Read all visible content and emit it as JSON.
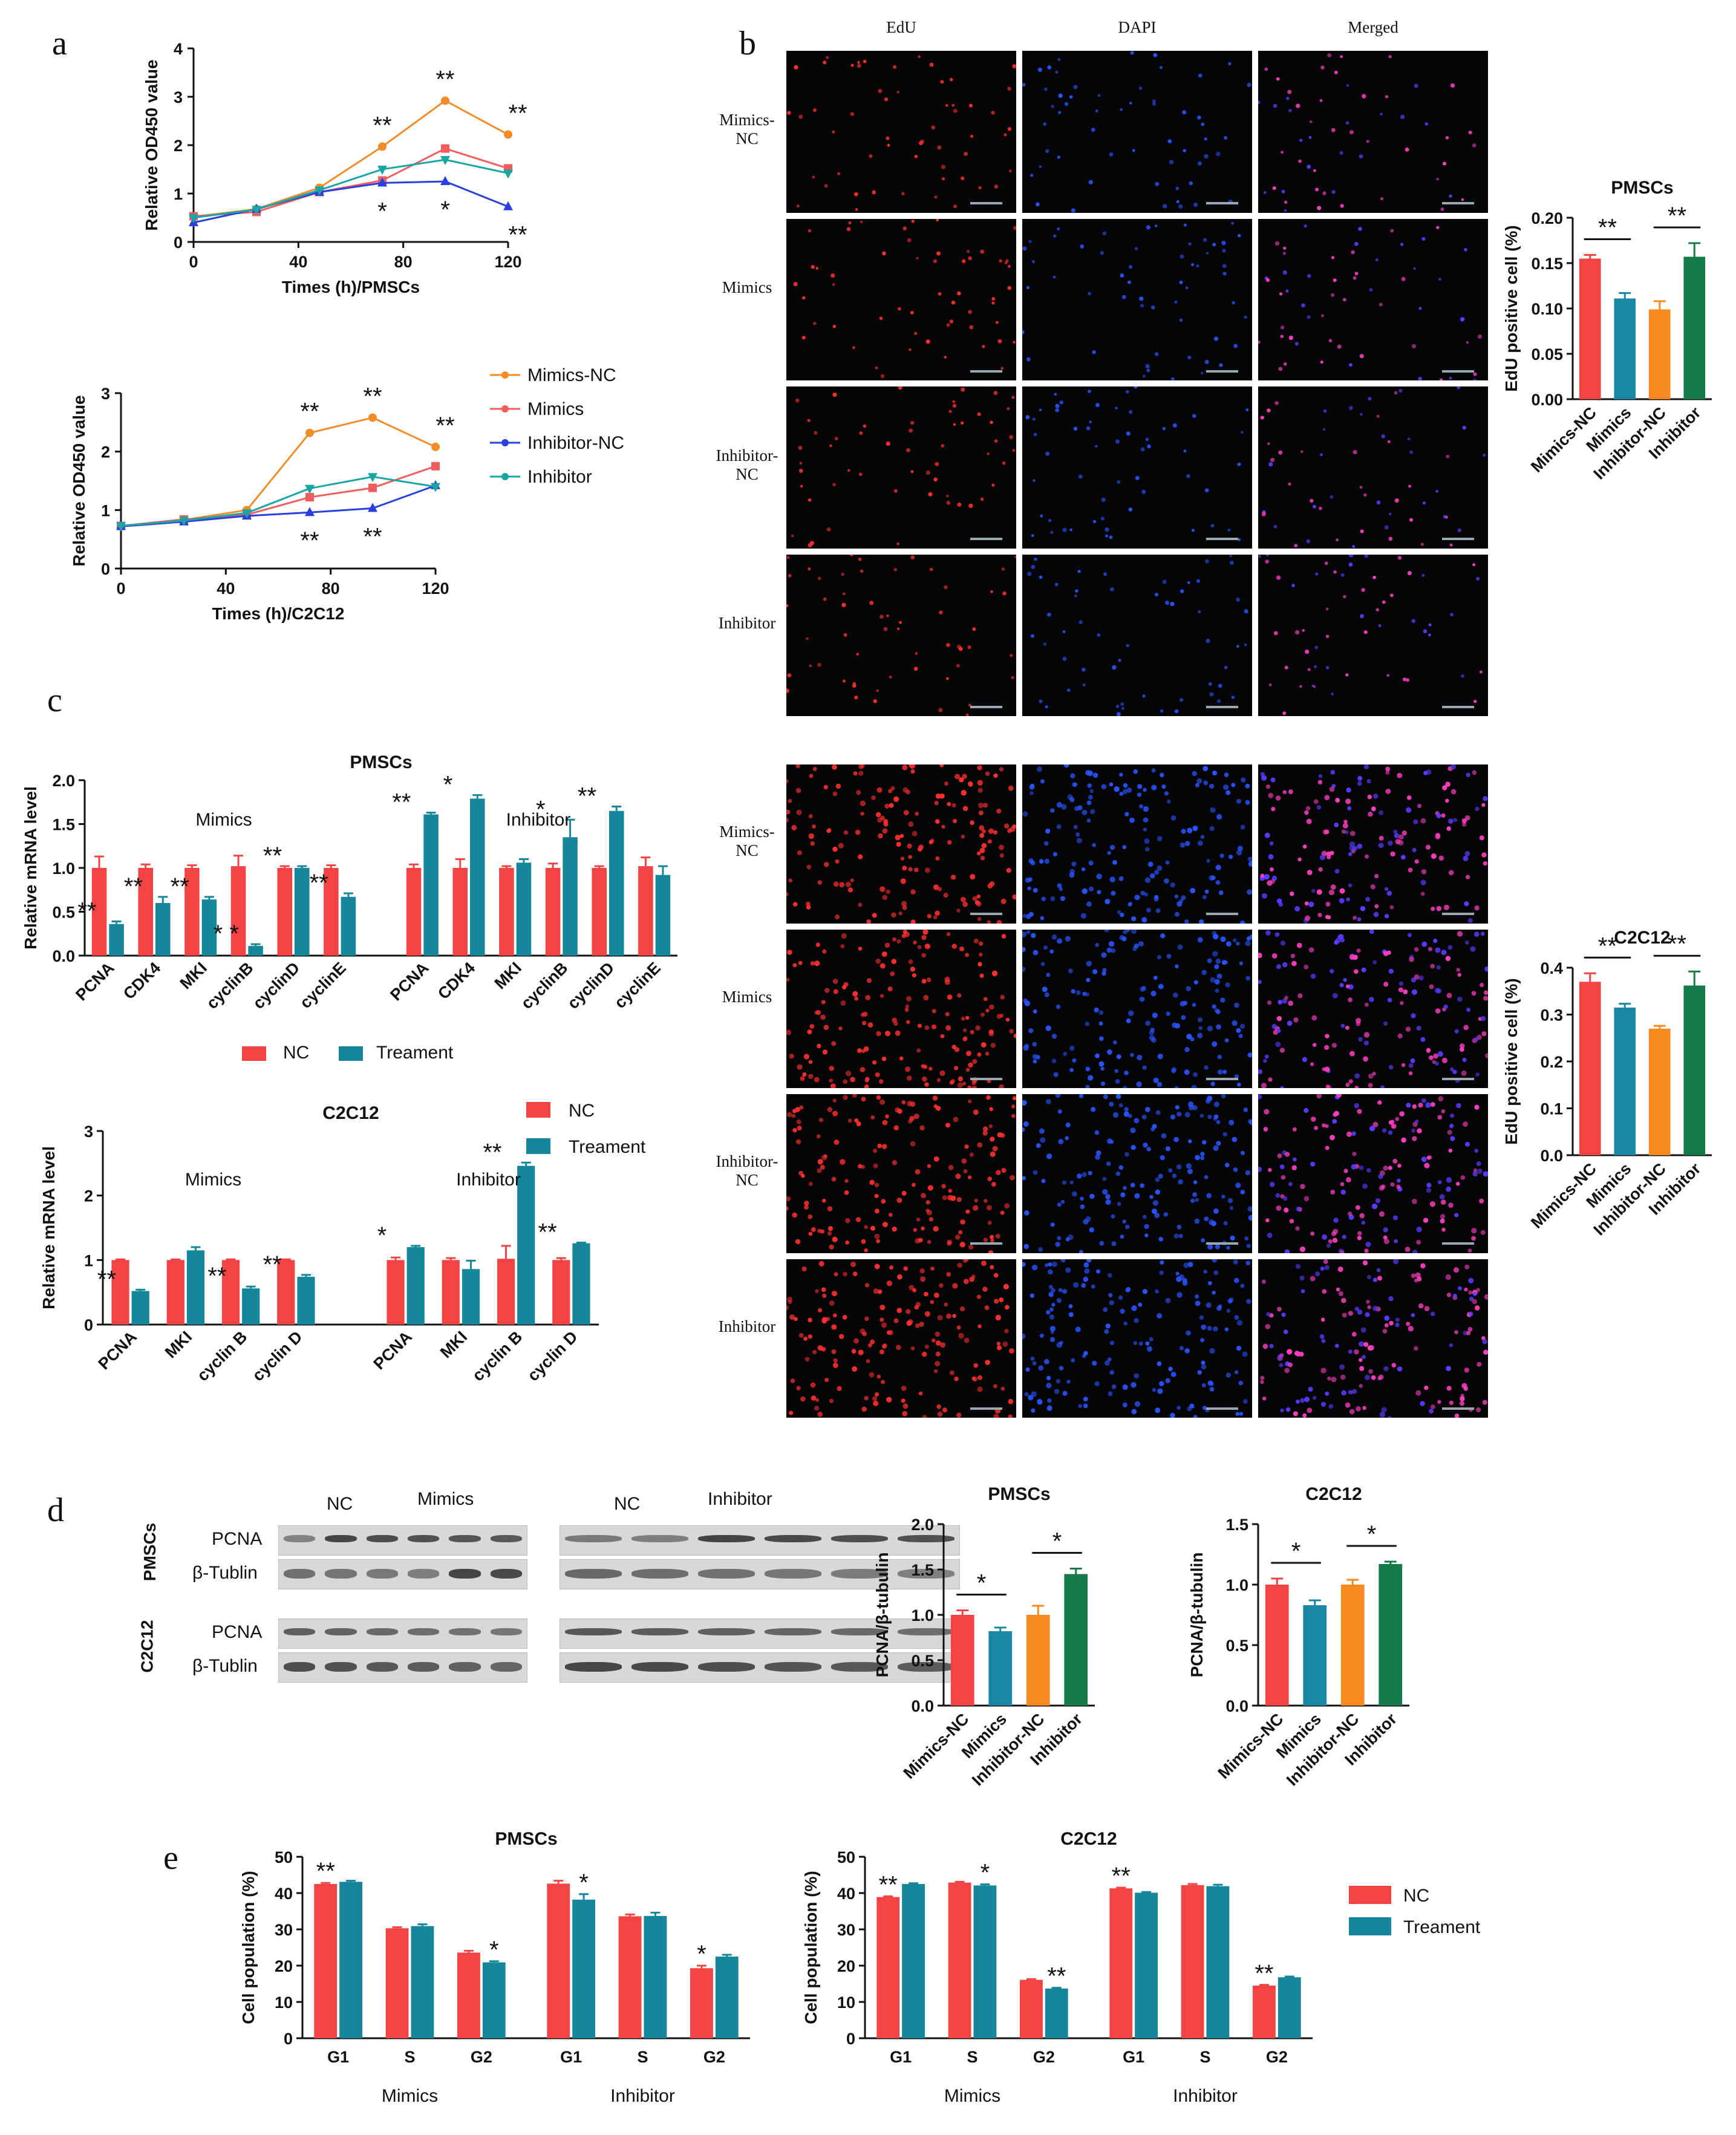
{
  "panels": {
    "a": {
      "label": "a"
    },
    "b": {
      "label": "b",
      "columns": [
        "EdU",
        "DAPI",
        "Merged"
      ],
      "rows_top": [
        "Mimics-\nNC",
        "Mimics",
        "Inhibitor-\nNC",
        "Inhibitor"
      ],
      "rows_bottom": [
        "Mimics-\nNC",
        "Mimics",
        "Inhibitor-\nNC",
        "Inhibitor"
      ]
    },
    "c": {
      "label": "c"
    },
    "d": {
      "label": "d",
      "blot_groups_left": [
        "NC",
        "Mimics"
      ],
      "blot_groups_right": [
        "NC",
        "Inhibitor"
      ],
      "cell_labels": [
        "PMSCs",
        "C2C12"
      ],
      "band_labels": [
        "PCNA",
        "β-Tublin"
      ]
    },
    "e": {
      "label": "e"
    }
  },
  "colors": {
    "mimics_nc": "#f28c28",
    "mimics": "#f25c5c",
    "inhibitor_nc": "#2a3fe0",
    "inhibitor": "#1aa5a5",
    "nc": "#f24444",
    "treament": "#16869a",
    "bar_mimics_nc": "#f24444",
    "bar_mimics": "#1a87a3",
    "bar_inhibitor_nc": "#f68a1e",
    "bar_inhibitor": "#157a4a"
  },
  "chart_data": [
    {
      "id": "a_pmsc",
      "type": "line",
      "xlabel": "Times (h)/PMSCs",
      "ylabel": "Relative OD450 value",
      "x": [
        0,
        24,
        48,
        72,
        96,
        120
      ],
      "xticks": [
        0,
        40,
        80,
        120
      ],
      "ylim": [
        0,
        4
      ],
      "yticks": [
        0,
        1,
        2,
        3,
        4
      ],
      "series": [
        {
          "name": "Mimics-NC",
          "values": [
            0.52,
            0.68,
            1.12,
            1.97,
            2.92,
            2.22
          ]
        },
        {
          "name": "Mimics",
          "values": [
            0.53,
            0.62,
            1.03,
            1.27,
            1.93,
            1.52
          ]
        },
        {
          "name": "Inhibitor-NC",
          "values": [
            0.4,
            0.68,
            1.03,
            1.22,
            1.25,
            0.73
          ]
        },
        {
          "name": "Inhibitor",
          "values": [
            0.5,
            0.67,
            1.07,
            1.5,
            1.7,
            1.42
          ]
        }
      ],
      "annotations_above": [
        {
          "x": 72,
          "text": "**"
        },
        {
          "x": 96,
          "text": "**"
        },
        {
          "x": 120,
          "text": "**"
        }
      ],
      "annotations_below": [
        {
          "x": 72,
          "text": "*"
        },
        {
          "x": 96,
          "text": "*"
        },
        {
          "x": 120,
          "text": "**"
        }
      ]
    },
    {
      "id": "a_c2c12",
      "type": "line",
      "xlabel": "Times (h)/C2C12",
      "ylabel": "Relative OD450 value",
      "x": [
        0,
        24,
        48,
        72,
        96,
        120
      ],
      "xticks": [
        0,
        40,
        80,
        120
      ],
      "ylim": [
        0,
        3
      ],
      "yticks": [
        0,
        1,
        2,
        3
      ],
      "series": [
        {
          "name": "Mimics-NC",
          "values": [
            0.72,
            0.83,
            1.0,
            2.32,
            2.58,
            2.08
          ]
        },
        {
          "name": "Mimics",
          "values": [
            0.73,
            0.84,
            0.92,
            1.22,
            1.38,
            1.75
          ]
        },
        {
          "name": "Inhibitor-NC",
          "values": [
            0.72,
            0.8,
            0.9,
            0.96,
            1.03,
            1.42
          ]
        },
        {
          "name": "Inhibitor",
          "values": [
            0.73,
            0.82,
            0.95,
            1.37,
            1.57,
            1.4
          ]
        }
      ],
      "annotations_above": [
        {
          "x": 72,
          "text": "**"
        },
        {
          "x": 96,
          "text": "**"
        },
        {
          "x": 120,
          "text": "**"
        }
      ],
      "annotations_below": [
        {
          "x": 72,
          "text": "**"
        },
        {
          "x": 96,
          "text": "**"
        }
      ]
    },
    {
      "id": "b_pmsc",
      "type": "bar",
      "title": "PMSCs",
      "ylabel": "EdU positive cell (%)",
      "categories": [
        "Mimics-NC",
        "Mimics",
        "Inhibitor-NC",
        "Inhibitor"
      ],
      "values": [
        0.155,
        0.111,
        0.099,
        0.157
      ],
      "errors": [
        0.004,
        0.006,
        0.009,
        0.015
      ],
      "ylim": [
        0,
        0.2
      ],
      "yticks": [
        0.0,
        0.05,
        0.1,
        0.15,
        0.2
      ],
      "ytick_labels": [
        "0.00",
        "0.05",
        "0.10",
        "0.15",
        "0.20"
      ],
      "brackets": [
        {
          "from": 0,
          "to": 1,
          "text": "**"
        },
        {
          "from": 2,
          "to": 3,
          "text": "**"
        }
      ]
    },
    {
      "id": "b_c2c12",
      "type": "bar",
      "title": "C2C12",
      "ylabel": "EdU positive cell (%)",
      "categories": [
        "Mimics-NC",
        "Mimics",
        "Inhibitor-NC",
        "Inhibitor"
      ],
      "values": [
        0.37,
        0.315,
        0.27,
        0.362
      ],
      "errors": [
        0.018,
        0.008,
        0.006,
        0.03
      ],
      "ylim": [
        0,
        0.4
      ],
      "yticks": [
        0.0,
        0.1,
        0.2,
        0.3,
        0.4
      ],
      "ytick_labels": [
        "0.0",
        "0.1",
        "0.2",
        "0.3",
        "0.4"
      ],
      "brackets": [
        {
          "from": 0,
          "to": 1,
          "text": "**"
        },
        {
          "from": 2,
          "to": 3,
          "text": "**"
        }
      ]
    },
    {
      "id": "c_pmsc",
      "type": "bar",
      "title": "PMSCs",
      "ylabel": "Relative mRNA level",
      "groups": [
        "Mimics",
        "Inhibitor"
      ],
      "categories": [
        "PCNA",
        "CDK4",
        "MKI",
        "cyclinB",
        "cyclinD",
        "cyclinE",
        "PCNA",
        "CDK4",
        "MKI",
        "cyclinB",
        "cyclinD",
        "cyclinE"
      ],
      "series": [
        {
          "name": "NC",
          "values": [
            1.0,
            1.0,
            1.0,
            1.02,
            1.0,
            1.0,
            1.0,
            1.0,
            1.0,
            1.0,
            1.0,
            1.02
          ]
        },
        {
          "name": "Treament",
          "values": [
            0.36,
            0.6,
            0.64,
            0.11,
            1.0,
            0.67,
            1.61,
            1.79,
            1.06,
            1.35,
            1.65,
            0.92
          ]
        }
      ],
      "errors": [
        [
          0.13,
          0.04,
          0.03,
          0.12,
          0.02,
          0.03,
          0.04,
          0.1,
          0.02,
          0.05,
          0.02,
          0.1
        ],
        [
          0.03,
          0.07,
          0.03,
          0.02,
          0.02,
          0.04,
          0.02,
          0.04,
          0.04,
          0.2,
          0.05,
          0.1
        ]
      ],
      "sig": [
        "**",
        "**",
        "**",
        "* *",
        "**",
        "**",
        "**",
        "*",
        "",
        "*",
        "**",
        ""
      ],
      "ylim": [
        0,
        2.0
      ],
      "yticks": [
        0.0,
        0.5,
        1.0,
        1.5,
        2.0
      ],
      "ytick_labels": [
        "0.0",
        "0.5",
        "1.0",
        "1.5",
        "2.0"
      ]
    },
    {
      "id": "c_c2c12",
      "type": "bar",
      "title": "C2C12",
      "ylabel": "Relative mRNA level",
      "groups": [
        "Mimics",
        "Inhibitor"
      ],
      "categories": [
        "PCNA",
        "MKI",
        "cyclin B",
        "cyclin D",
        "PCNA",
        "MKI",
        "cyclin B",
        "cyclin D"
      ],
      "series": [
        {
          "name": "NC",
          "values": [
            1.0,
            1.0,
            1.0,
            1.0,
            1.0,
            1.0,
            1.02,
            1.0
          ]
        },
        {
          "name": "Treament",
          "values": [
            0.52,
            1.15,
            0.56,
            0.74,
            1.2,
            0.86,
            2.46,
            1.26
          ]
        }
      ],
      "errors": [
        [
          0.01,
          0.01,
          0.01,
          0.01,
          0.04,
          0.03,
          0.2,
          0.03
        ],
        [
          0.02,
          0.05,
          0.03,
          0.03,
          0.02,
          0.13,
          0.05,
          0.01
        ]
      ],
      "sig": [
        "**",
        "",
        "**",
        "**",
        "*",
        "",
        "**",
        "**"
      ],
      "ylim": [
        0,
        3
      ],
      "yticks": [
        0,
        1,
        2,
        3
      ],
      "ytick_labels": [
        "0",
        "1",
        "2",
        "3"
      ]
    },
    {
      "id": "d_pmsc",
      "type": "bar",
      "title": "PMSCs",
      "ylabel": "PCNA/β-tubulin",
      "categories": [
        "Mimics-NC",
        "Mimics",
        "Inhibitor-NC",
        "Inhibitor"
      ],
      "values": [
        1.0,
        0.82,
        1.0,
        1.45
      ],
      "errors": [
        0.05,
        0.04,
        0.1,
        0.06
      ],
      "ylim": [
        0,
        2.0
      ],
      "yticks": [
        0.0,
        0.5,
        1.0,
        1.5,
        2.0
      ],
      "ytick_labels": [
        "0.0",
        "0.5",
        "1.0",
        "1.5",
        "2.0"
      ],
      "brackets": [
        {
          "from": 0,
          "to": 1,
          "text": "*"
        },
        {
          "from": 2,
          "to": 3,
          "text": "*"
        }
      ]
    },
    {
      "id": "d_c2c12",
      "type": "bar",
      "title": "C2C12",
      "ylabel": "PCNA/β-tubulin",
      "categories": [
        "Mimics-NC",
        "Mimics",
        "Inhibitor-NC",
        "Inhibitor"
      ],
      "values": [
        1.0,
        0.83,
        1.0,
        1.17
      ],
      "errors": [
        0.05,
        0.04,
        0.04,
        0.02
      ],
      "ylim": [
        0,
        1.5
      ],
      "yticks": [
        0.0,
        0.5,
        1.0,
        1.5
      ],
      "ytick_labels": [
        "0.0",
        "0.5",
        "1.0",
        "1.5"
      ],
      "brackets": [
        {
          "from": 0,
          "to": 1,
          "text": "*"
        },
        {
          "from": 2,
          "to": 3,
          "text": "*"
        }
      ]
    },
    {
      "id": "e_pmsc",
      "type": "bar",
      "title": "PMSCs",
      "ylabel": "Cell population (%)",
      "groups": [
        "Mimics",
        "Inhibitor"
      ],
      "categories": [
        "G1",
        "S",
        "G2",
        "G1",
        "S",
        "G2"
      ],
      "series": [
        {
          "name": "NC",
          "values": [
            42.5,
            30.3,
            23.6,
            42.6,
            33.6,
            19.3
          ]
        },
        {
          "name": "Treament",
          "values": [
            43.1,
            30.9,
            20.9,
            38.2,
            33.7,
            22.5
          ]
        }
      ],
      "errors": [
        [
          0.3,
          0.3,
          0.5,
          0.8,
          0.5,
          0.7
        ],
        [
          0.3,
          0.5,
          0.3,
          1.5,
          0.9,
          0.5
        ]
      ],
      "sig": [
        "**",
        "",
        "*",
        "*",
        "",
        "*"
      ],
      "sig_on": [
        "nc",
        "",
        "tr",
        "tr",
        "",
        "nc"
      ],
      "ylim": [
        0,
        50
      ],
      "yticks": [
        0,
        10,
        20,
        30,
        40,
        50
      ],
      "ytick_labels": [
        "0",
        "10",
        "20",
        "30",
        "40",
        "50"
      ]
    },
    {
      "id": "e_c2c12",
      "type": "bar",
      "title": "C2C12",
      "ylabel": "Cell population (%)",
      "groups": [
        "Mimics",
        "Inhibitor"
      ],
      "categories": [
        "G1",
        "S",
        "G2",
        "G1",
        "S",
        "G2"
      ],
      "series": [
        {
          "name": "NC",
          "values": [
            38.9,
            42.9,
            16.1,
            41.3,
            42.2,
            14.5
          ]
        },
        {
          "name": "Treament",
          "values": [
            42.5,
            42.1,
            13.7,
            40.1,
            41.9,
            16.8
          ]
        }
      ],
      "errors": [
        [
          0.2,
          0.2,
          0.2,
          0.2,
          0.3,
          0.2
        ],
        [
          0.2,
          0.3,
          0.2,
          0.2,
          0.4,
          0.2
        ]
      ],
      "sig": [
        "**",
        "*",
        "**",
        "**",
        "",
        "**"
      ],
      "sig_on": [
        "nc",
        "tr",
        "tr",
        "nc",
        "",
        "nc"
      ],
      "ylim": [
        0,
        50
      ],
      "yticks": [
        0,
        10,
        20,
        30,
        40,
        50
      ],
      "ytick_labels": [
        "0",
        "10",
        "20",
        "30",
        "40",
        "50"
      ]
    }
  ],
  "legends": {
    "a": [
      "Mimics-NC",
      "Mimics",
      "Inhibitor-NC",
      "Inhibitor"
    ],
    "c_pmsc": [
      "NC",
      "Treament"
    ],
    "c_c2c12": [
      "NC",
      "Treament"
    ],
    "e": [
      "NC",
      "Treament"
    ]
  }
}
